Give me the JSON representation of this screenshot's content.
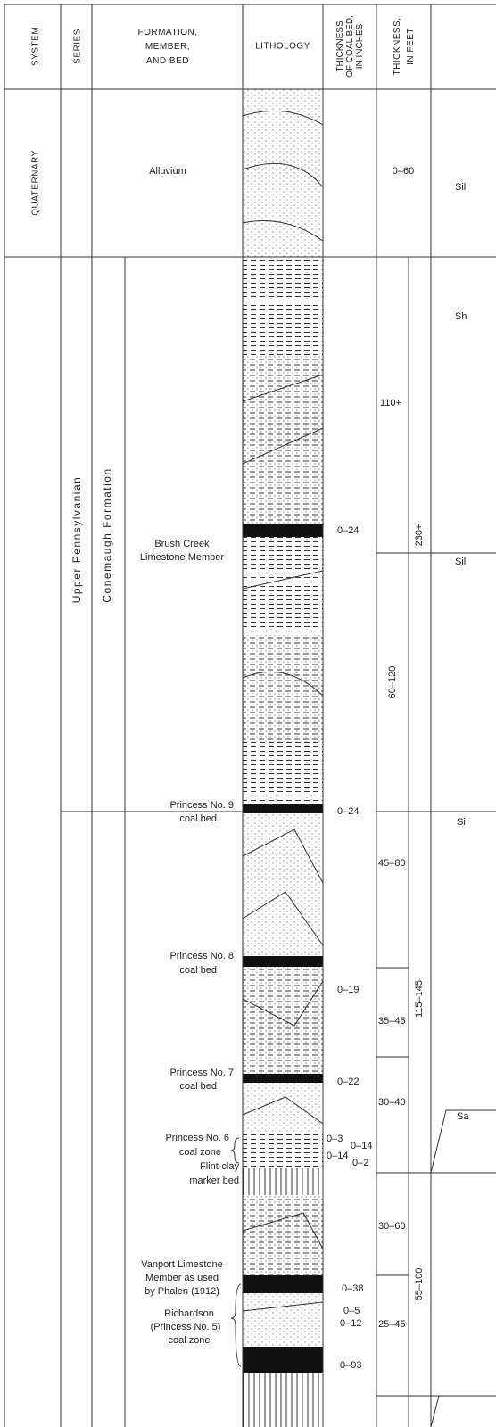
{
  "header": {
    "system": "SYSTEM",
    "series": "SERIES",
    "formation": [
      "FORMATION,",
      "MEMBER,",
      "AND BED"
    ],
    "lithology": "LITHOLOGY",
    "coal_thickness": [
      "THICKNESS",
      "OF COAL BED,",
      "IN INCHES"
    ],
    "feet_thickness": [
      "THICKNESS,",
      "IN FEET"
    ]
  },
  "systems": [
    "QUATERNARY"
  ],
  "series": [
    "Upper Pennsylvanian"
  ],
  "formations": [
    "Conemaugh Formation"
  ],
  "units": [
    [
      "Alluvium"
    ],
    [
      "Brush Creek",
      "Limestone Member"
    ],
    [
      "Princess No. 9",
      "coal bed"
    ],
    [
      "Princess No. 8",
      "coal bed"
    ],
    [
      "Princess No. 7",
      "coal bed"
    ],
    [
      "Princess No. 6",
      "coal zone"
    ],
    [
      "Flint-clay",
      "marker bed"
    ],
    [
      "Vanport Limestone",
      "Member as used",
      "by Phalen (1912)"
    ],
    [
      "Richardson",
      "(Princess No. 5)",
      "coal zone"
    ]
  ],
  "coal_thickness": [
    "0–24",
    "0–24",
    "0–19",
    "0–22",
    "0–3",
    "0–14",
    "0–14",
    "0–2",
    "0–38",
    "0–5",
    "0–12",
    "0–93"
  ],
  "feet_thickness": [
    "0–60",
    "110+",
    "230+",
    "60–120",
    "45–80",
    "115–145",
    "35–45",
    "30–40",
    "30–60",
    "55–100",
    "25–45"
  ],
  "descriptions": [
    "Sil",
    "Sh",
    "Sil",
    "Si",
    "Sa"
  ]
}
